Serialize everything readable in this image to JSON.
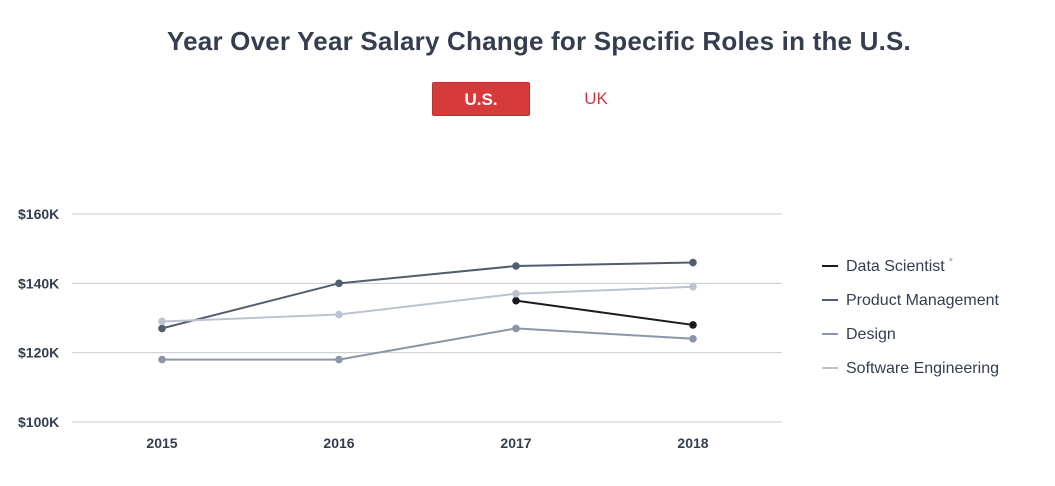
{
  "header": {
    "title": "Year Over Year Salary Change for Specific Roles in the U.S."
  },
  "region_toggle": {
    "options": [
      {
        "label": "U.S.",
        "active": true
      },
      {
        "label": "UK",
        "active": false
      }
    ]
  },
  "colors": {
    "accent": "#d73a3a",
    "accent_text": "#c73a44",
    "grid": "#c8cbd0"
  },
  "chart_data": {
    "type": "line",
    "title": "Year Over Year Salary Change for Specific Roles in the U.S.",
    "x": [
      "2015",
      "2016",
      "2017",
      "2018"
    ],
    "ylim": [
      100000,
      160000
    ],
    "yticks": [
      100000,
      120000,
      140000,
      160000
    ],
    "ytick_labels": [
      "$100K",
      "$120K",
      "$140K",
      "$160K"
    ],
    "grid": true,
    "legend_position": "right",
    "series": [
      {
        "name": "Data Scientist",
        "note": "*",
        "color": "#1a1a1f",
        "values": [
          null,
          null,
          135000,
          128000
        ]
      },
      {
        "name": "Product Management",
        "note": "",
        "color": "#535d70",
        "values": [
          127000,
          140000,
          145000,
          146000
        ]
      },
      {
        "name": "Design",
        "note": "",
        "color": "#8b96a8",
        "values": [
          118000,
          118000,
          127000,
          124000
        ]
      },
      {
        "name": "Software Engineering",
        "note": "",
        "color": "#bcc4d1",
        "values": [
          129000,
          131000,
          137000,
          139000
        ]
      }
    ]
  }
}
